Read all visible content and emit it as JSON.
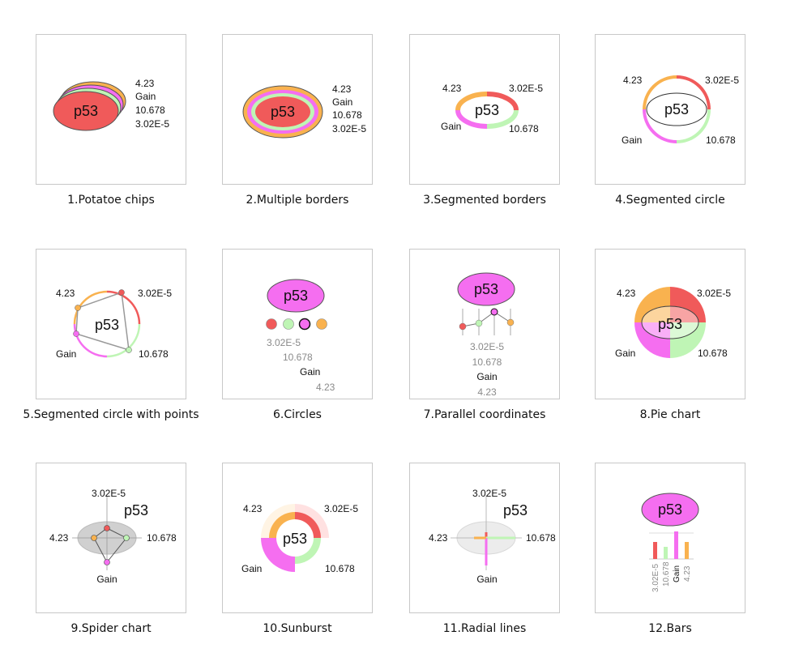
{
  "gene": "p53",
  "values": {
    "v1": "4.23",
    "v2": "3.02E-5",
    "v3": "10.678",
    "v4": "Gain"
  },
  "colors": {
    "red": "#f05a5a",
    "green": "#bff5b5",
    "magenta": "#f56ef0",
    "orange": "#f9b24f"
  },
  "captions": [
    "1.Potatoe chips",
    "2.Multiple borders",
    "3.Segmented borders",
    "4.Segmented circle",
    "5.Segmented circle with points",
    "6.Circles",
    "7.Parallel coordinates",
    "8.Pie chart",
    "9.Spider chart",
    "10.Sunburst",
    "11.Radial lines",
    "12.Bars"
  ]
}
